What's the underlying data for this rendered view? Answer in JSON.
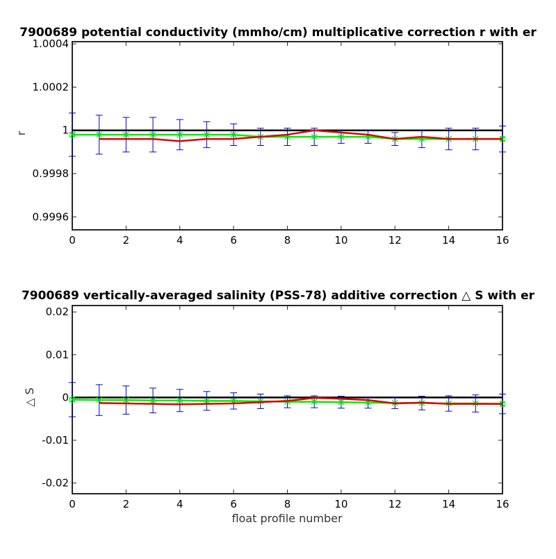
{
  "colors": {
    "background": "#ffffff",
    "axes": "#262626",
    "reference_line": "#000000",
    "red_series": "#dd0000",
    "green_series": "#00ee00",
    "error_bars": "#0000cc"
  },
  "xlabel": "float profile number",
  "chart_data": [
    {
      "type": "line",
      "title": "7900689 potential conductivity (mmho/cm) multiplicative correction r with er",
      "xlabel": "",
      "ylabel": "r",
      "xlim": [
        0,
        16
      ],
      "ylim": [
        0.99954,
        1.00041
      ],
      "xticks": [
        0,
        2,
        4,
        6,
        8,
        10,
        12,
        14,
        16
      ],
      "yticks": [
        0.9996,
        0.9998,
        1,
        1.0002,
        1.0004
      ],
      "ytick_labels": [
        "0.9996",
        "0.9998",
        "1",
        "1.0002",
        "1.0004"
      ],
      "grid": false,
      "reference": {
        "name": "",
        "y": 1
      },
      "series": [
        {
          "name": "",
          "color": "red",
          "x": [
            1,
            2,
            3,
            4,
            5,
            6,
            7,
            8,
            9,
            10,
            11,
            12,
            13,
            14,
            15,
            16
          ],
          "y": [
            0.99996,
            0.99996,
            0.99996,
            0.99995,
            0.99996,
            0.99996,
            0.99997,
            0.99998,
            1.0,
            0.99999,
            0.99998,
            0.99996,
            0.99997,
            0.99996,
            0.99996,
            0.99996
          ]
        },
        {
          "name": "",
          "color": "green",
          "marker": "x",
          "x": [
            0,
            1,
            2,
            3,
            4,
            5,
            6,
            7,
            8,
            9,
            10,
            11,
            12,
            13,
            14,
            15,
            16
          ],
          "y": [
            0.99998,
            0.99998,
            0.99998,
            0.99998,
            0.99998,
            0.99998,
            0.99998,
            0.99997,
            0.99997,
            0.99997,
            0.99997,
            0.99997,
            0.99996,
            0.99996,
            0.99996,
            0.99996,
            0.99996
          ],
          "err": [
            0.0001,
            9e-05,
            8e-05,
            8e-05,
            7e-05,
            6e-05,
            5e-05,
            4e-05,
            4e-05,
            4e-05,
            3e-05,
            3e-05,
            3e-05,
            4e-05,
            5e-05,
            5e-05,
            6e-05
          ]
        }
      ]
    },
    {
      "type": "line",
      "title": "7900689 vertically-averaged salinity (PSS-78) additive correction △ S with er",
      "xlabel": "float profile number",
      "ylabel": "△ S",
      "xlim": [
        0,
        16
      ],
      "ylim": [
        -0.0225,
        0.0215
      ],
      "xticks": [
        0,
        2,
        4,
        6,
        8,
        10,
        12,
        14,
        16
      ],
      "yticks": [
        -0.02,
        -0.01,
        0,
        0.01,
        0.02
      ],
      "ytick_labels": [
        "-0.02",
        "-0.01",
        "0",
        "0.01",
        "0.02"
      ],
      "grid": false,
      "reference": {
        "name": "",
        "y": 0
      },
      "series": [
        {
          "name": "",
          "color": "red",
          "x": [
            1,
            2,
            3,
            4,
            5,
            6,
            7,
            8,
            9,
            10,
            11,
            12,
            13,
            14,
            15,
            16
          ],
          "y": [
            -0.0013,
            -0.0014,
            -0.0015,
            -0.0016,
            -0.0015,
            -0.0014,
            -0.0011,
            -0.0008,
            -0.0001,
            -0.0003,
            -0.0006,
            -0.0014,
            -0.0012,
            -0.0015,
            -0.0015,
            -0.0015
          ]
        },
        {
          "name": "",
          "color": "green",
          "marker": "x",
          "x": [
            0,
            1,
            2,
            3,
            4,
            5,
            6,
            7,
            8,
            9,
            10,
            11,
            12,
            13,
            14,
            15,
            16
          ],
          "y": [
            -0.0005,
            -0.0006,
            -0.0006,
            -0.0007,
            -0.0007,
            -0.0008,
            -0.0008,
            -0.0009,
            -0.001,
            -0.001,
            -0.0011,
            -0.0012,
            -0.0013,
            -0.0013,
            -0.0014,
            -0.0014,
            -0.0015
          ],
          "err": [
            0.004,
            0.0036,
            0.0033,
            0.0029,
            0.0026,
            0.0022,
            0.0019,
            0.0017,
            0.0014,
            0.0014,
            0.0014,
            0.0013,
            0.0013,
            0.0016,
            0.0018,
            0.002,
            0.0023
          ]
        }
      ]
    }
  ]
}
